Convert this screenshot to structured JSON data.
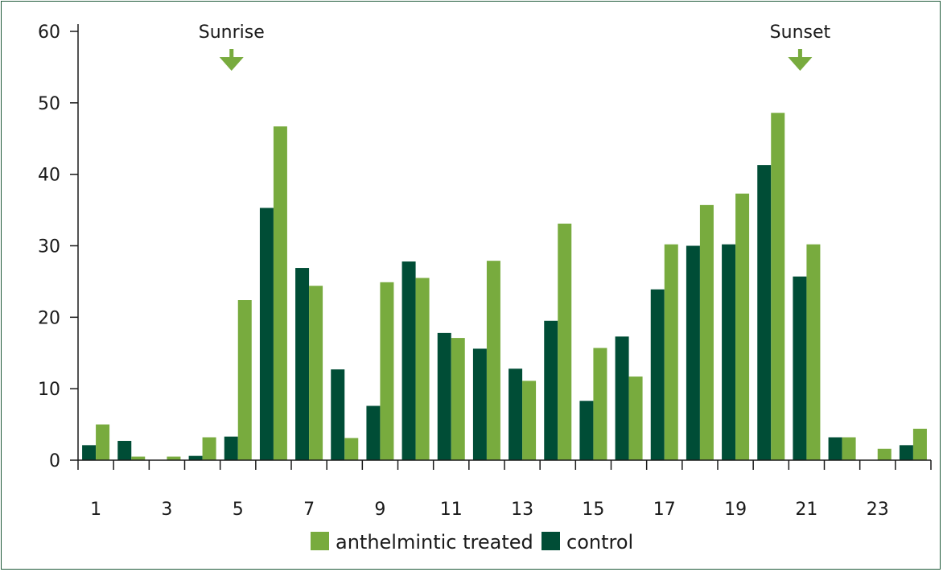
{
  "chart_data": {
    "type": "bar",
    "categories": [
      "1",
      "2",
      "3",
      "4",
      "5",
      "6",
      "7",
      "8",
      "9",
      "10",
      "11",
      "12",
      "13",
      "14",
      "15",
      "16",
      "17",
      "18",
      "19",
      "20",
      "21",
      "22",
      "23",
      "24"
    ],
    "x_tick_labels": [
      "1",
      "3",
      "5",
      "7",
      "9",
      "11",
      "13",
      "15",
      "17",
      "19",
      "21",
      "23"
    ],
    "series": [
      {
        "name": "control",
        "color": "#004d36",
        "values": [
          2.1,
          2.7,
          0,
          0.6,
          3.3,
          35.3,
          26.9,
          12.7,
          7.6,
          27.8,
          17.8,
          15.6,
          12.8,
          19.5,
          8.3,
          17.3,
          23.9,
          30.0,
          30.2,
          41.3,
          25.7,
          3.2,
          0,
          2.1
        ]
      },
      {
        "name": "anthelmintic treated",
        "color": "#78ab3e",
        "values": [
          5.0,
          0.5,
          0.5,
          3.2,
          22.4,
          46.7,
          24.4,
          3.1,
          24.9,
          25.5,
          17.1,
          27.9,
          11.1,
          33.1,
          15.7,
          11.7,
          30.2,
          35.7,
          37.3,
          48.6,
          30.2,
          3.2,
          1.6,
          4.4
        ]
      }
    ],
    "yticks": [
      0,
      10,
      20,
      30,
      40,
      50,
      60
    ],
    "ylim": [
      0,
      60
    ],
    "annotations": [
      {
        "label": "Sunrise",
        "at": 5
      },
      {
        "label": "Sunset",
        "at": 21
      }
    ],
    "legend": {
      "placement": "bottom-center",
      "items": [
        "anthelmintic treated",
        "control"
      ]
    },
    "grid": false,
    "border_color": "#1f5a3a",
    "arrow_color": "#78ab3e"
  }
}
